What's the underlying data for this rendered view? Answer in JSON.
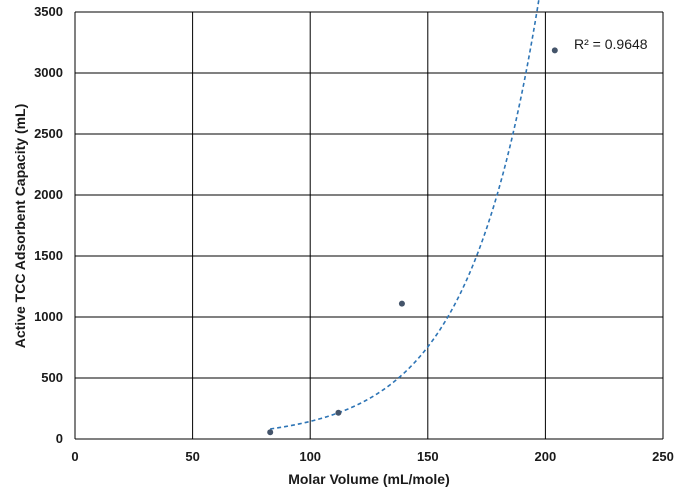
{
  "chart_data": {
    "type": "scatter",
    "title": "",
    "xlabel": "Molar Volume (mL/mole)",
    "ylabel": "Active TCC Adsorbent Capacity (mL)",
    "xlim": [
      0,
      250
    ],
    "ylim": [
      0,
      3500
    ],
    "xticks": [
      0,
      50,
      100,
      150,
      200,
      250
    ],
    "yticks": [
      0,
      500,
      1000,
      1500,
      2000,
      2500,
      3000,
      3500
    ],
    "grid": true,
    "series": [
      {
        "points": [
          {
            "x": 83,
            "y": 55
          },
          {
            "x": 112,
            "y": 215
          },
          {
            "x": 139,
            "y": 1110
          },
          {
            "x": 204,
            "y": 3185
          }
        ],
        "color": "#44546a"
      }
    ],
    "trendline": {
      "type": "exponential",
      "style": "dashed",
      "color": "#2e75b6",
      "x_range": [
        83,
        198.5
      ]
    },
    "annotation": "R² = 0.9648"
  }
}
